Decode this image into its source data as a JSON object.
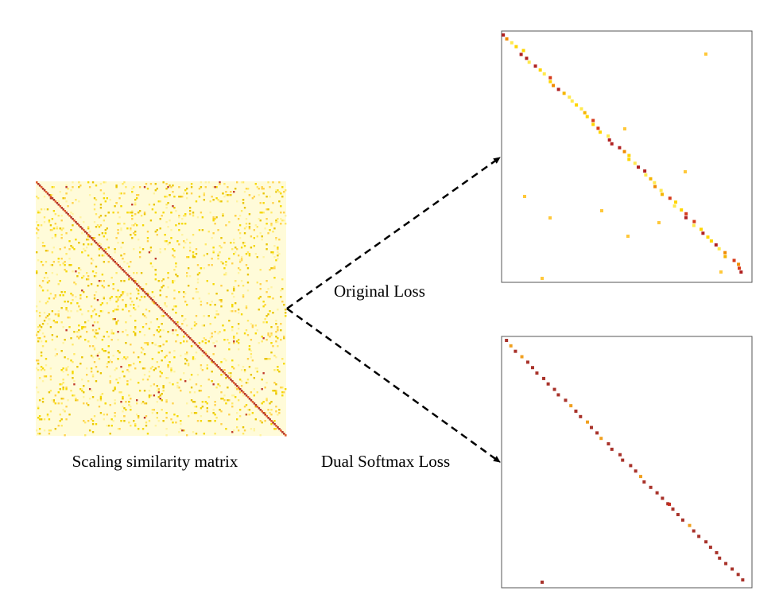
{
  "left_matrix": {
    "caption": "Scaling similarity matrix"
  },
  "arrows": [
    {
      "label": "Original Loss"
    },
    {
      "label": "Dual Softmax Loss"
    }
  ]
}
